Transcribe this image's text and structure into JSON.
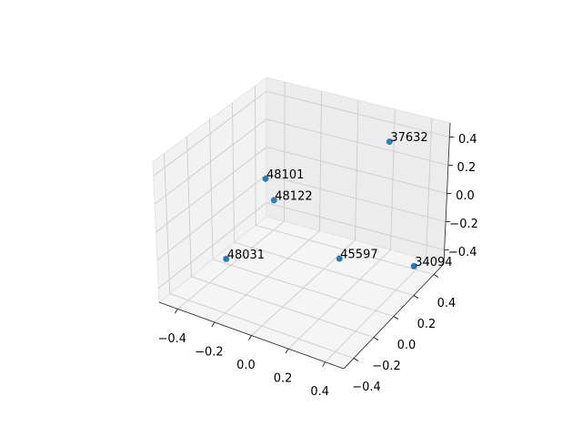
{
  "chart_data": {
    "type": "scatter3d",
    "series": [
      {
        "color": "#1f77b4",
        "x": [
          0.084,
          0.437,
          0.204,
          -0.185,
          -0.19,
          -0.309
        ],
        "y": [
          0.201,
          0.309,
          0.449,
          -0.035,
          0.05,
          -0.195
        ],
        "z": [
          -0.4,
          -0.4,
          0.3,
          0.2,
          0.0,
          -0.3
        ],
        "labels": [
          "45597",
          "34094",
          "37632",
          "48101",
          "48122",
          "48031"
        ]
      }
    ],
    "xlim": [
      -0.5,
      0.5
    ],
    "ylim": [
      -0.5,
      0.5
    ],
    "zlim": [
      -0.5,
      0.5
    ],
    "xticks": [
      {
        "value": -0.4,
        "label": "−0.4"
      },
      {
        "value": -0.2,
        "label": "−0.2"
      },
      {
        "value": 0,
        "label": "0.0"
      },
      {
        "value": 0.2,
        "label": "0.2"
      },
      {
        "value": 0.4,
        "label": "0.4"
      }
    ],
    "yticks": [
      {
        "value": -0.4,
        "label": "−0.4"
      },
      {
        "value": -0.2,
        "label": "−0.2"
      },
      {
        "value": 0,
        "label": "0.0"
      },
      {
        "value": 0.2,
        "label": "0.2"
      },
      {
        "value": 0.4,
        "label": "0.4"
      }
    ],
    "zticks": [
      {
        "value": -0.4,
        "label": "−0.4"
      },
      {
        "value": -0.2,
        "label": "−0.2"
      },
      {
        "value": 0,
        "label": "0.0"
      },
      {
        "value": 0.2,
        "label": "0.2"
      },
      {
        "value": 0.4,
        "label": "0.4"
      }
    ],
    "grid": true
  }
}
